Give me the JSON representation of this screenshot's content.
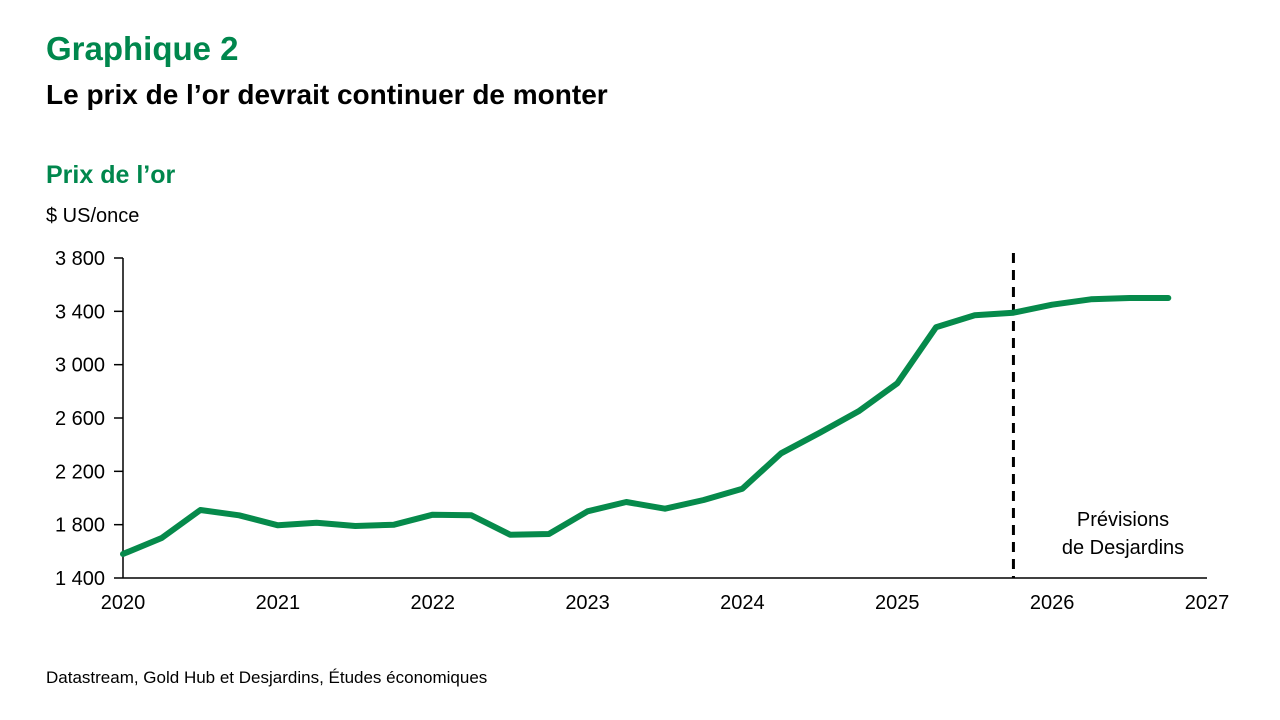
{
  "header": {
    "title": "Graphique 2",
    "subtitle": "Le prix de l’or devrait continuer de monter",
    "chart_title": "Prix de l’or",
    "unit_label": "$ US/once"
  },
  "annotation": {
    "line1": "Prévisions",
    "line2": "de Desjardins"
  },
  "source": "Datastream, Gold Hub et Desjardins, Études économiques",
  "colors": {
    "brand_green": "#00874D",
    "line_green": "#068A4B",
    "axis_black": "#000000"
  },
  "chart_data": {
    "type": "line",
    "title": "Prix de l’or",
    "ylabel": "$ US/once",
    "xlabel": "",
    "grid": false,
    "legend_position": "none",
    "x_start_year": 2020,
    "x_end_year": 2027,
    "x_tick_labels": [
      "2020",
      "2021",
      "2022",
      "2023",
      "2024",
      "2025",
      "2026",
      "2027"
    ],
    "ylim": [
      1400,
      3800
    ],
    "y_ticks": [
      1400,
      1800,
      2200,
      2600,
      3000,
      3400,
      3800
    ],
    "y_tick_labels": [
      "1 400",
      "1 800",
      "2 200",
      "2 600",
      "3 000",
      "3 400",
      "3 800"
    ],
    "series": [
      {
        "name": "Prix de l’or ($ US/once)",
        "frequency": "quarterly",
        "start": "2020Q1",
        "end": "2026Q4",
        "values": [
          1580,
          1700,
          1910,
          1870,
          1795,
          1815,
          1790,
          1800,
          1875,
          1870,
          1725,
          1730,
          1900,
          1970,
          1920,
          1985,
          2070,
          2335,
          2490,
          2650,
          2860,
          3280,
          3370,
          3390,
          3450,
          3490,
          3500,
          3500
        ]
      }
    ],
    "forecast_divider": {
      "position_year": 2025.75,
      "style": "dashed",
      "label": "Prévisions de Desjardins"
    }
  }
}
